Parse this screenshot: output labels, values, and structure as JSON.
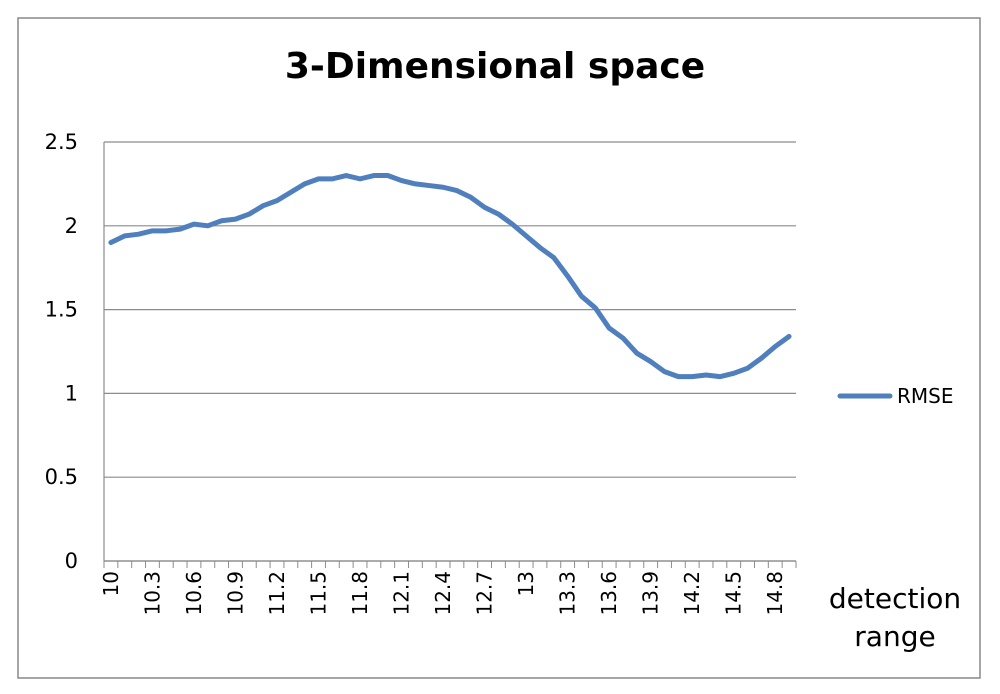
{
  "chart_data": {
    "type": "line",
    "title": "3-Dimensional space",
    "x_label": "detection range",
    "categories": [
      "10",
      null,
      null,
      "10.3",
      null,
      null,
      "10.6",
      null,
      null,
      "10.9",
      null,
      null,
      "11.2",
      null,
      null,
      "11.5",
      null,
      null,
      "11.8",
      null,
      null,
      "12.1",
      null,
      null,
      "12.4",
      null,
      null,
      "12.7",
      null,
      null,
      "13",
      null,
      null,
      "13.3",
      null,
      null,
      "13.6",
      null,
      null,
      "13.9",
      null,
      null,
      "14.2",
      null,
      null,
      "14.5",
      null,
      null,
      "14.8",
      null
    ],
    "series": [
      {
        "name": "RMSE",
        "color": "#4f7fbd",
        "values": [
          1.9,
          1.94,
          1.95,
          1.97,
          1.97,
          1.98,
          2.01,
          2.0,
          2.03,
          2.04,
          2.07,
          2.12,
          2.15,
          2.2,
          2.25,
          2.28,
          2.28,
          2.3,
          2.28,
          2.3,
          2.3,
          2.27,
          2.25,
          2.24,
          2.23,
          2.21,
          2.17,
          2.11,
          2.07,
          2.01,
          1.94,
          1.87,
          1.81,
          1.7,
          1.58,
          1.51,
          1.39,
          1.33,
          1.24,
          1.19,
          1.13,
          1.1,
          1.1,
          1.11,
          1.1,
          1.12,
          1.15,
          1.21,
          1.28,
          1.34
        ]
      }
    ],
    "ylim": [
      0,
      2.5
    ],
    "yticks": [
      0,
      0.5,
      1,
      1.5,
      2,
      2.5
    ],
    "grid": true,
    "legend": "right"
  }
}
